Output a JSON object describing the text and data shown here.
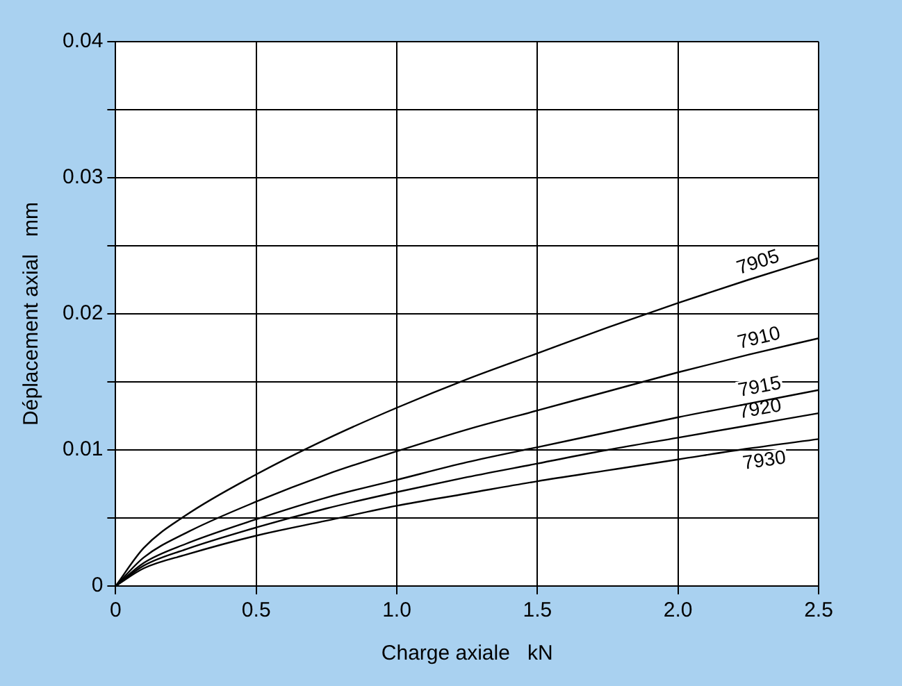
{
  "chart_data": {
    "type": "line",
    "xlabel": "Charge axiale   kN",
    "ylabel": "Déplacement axial   mm",
    "x": [
      0,
      0.1,
      0.25,
      0.5,
      0.75,
      1,
      1.25,
      1.5,
      1.75,
      2,
      2.25,
      2.5
    ],
    "series": [
      {
        "name": "7905",
        "color": "#000000",
        "values": [
          0,
          0.0028,
          0.0052,
          0.0082,
          0.0108,
          0.0131,
          0.0152,
          0.0171,
          0.019,
          0.0208,
          0.0225,
          0.0241
        ]
      },
      {
        "name": "7910",
        "color": "#000000",
        "values": [
          0,
          0.0021,
          0.0039,
          0.0062,
          0.0082,
          0.0099,
          0.0115,
          0.0129,
          0.0143,
          0.0157,
          0.017,
          0.0182
        ]
      },
      {
        "name": "7915",
        "color": "#000000",
        "values": [
          0,
          0.0017,
          0.0031,
          0.0049,
          0.0065,
          0.0078,
          0.0091,
          0.0102,
          0.0113,
          0.0124,
          0.0134,
          0.0144
        ]
      },
      {
        "name": "7920",
        "color": "#000000",
        "values": [
          0,
          0.0015,
          0.0027,
          0.0043,
          0.0057,
          0.0069,
          0.008,
          0.009,
          0.01,
          0.0109,
          0.0118,
          0.0127
        ]
      },
      {
        "name": "7930",
        "color": "#000000",
        "values": [
          0,
          0.0013,
          0.0023,
          0.0037,
          0.0048,
          0.0059,
          0.0068,
          0.0077,
          0.0085,
          0.0093,
          0.0101,
          0.0108
        ]
      }
    ],
    "xlim": [
      0,
      2.5
    ],
    "ylim": [
      0,
      0.04
    ],
    "xticks": [
      0,
      0.5,
      {
        "value": 1,
        "label": "1.0"
      },
      1.5,
      {
        "value": 2,
        "label": "2.0"
      },
      2.5
    ],
    "yticks": [
      0,
      {
        "value": 0.005,
        "label": null
      },
      0.01,
      {
        "value": 0.015,
        "label": null
      },
      0.02,
      {
        "value": 0.025,
        "label": null
      },
      0.03,
      {
        "value": 0.035,
        "label": null
      },
      0.04
    ],
    "grid": true,
    "marker": "none",
    "line_style": "solid"
  }
}
